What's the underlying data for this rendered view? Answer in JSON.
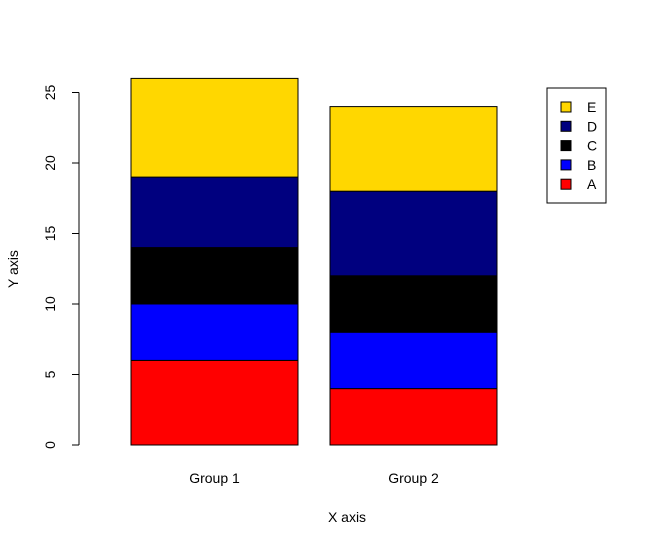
{
  "chart_data": {
    "type": "bar",
    "stacked": true,
    "categories": [
      "Group 1",
      "Group 2"
    ],
    "series": [
      {
        "name": "A",
        "color": "#ff0000",
        "values": [
          6,
          4
        ]
      },
      {
        "name": "B",
        "color": "#0000ff",
        "values": [
          4,
          4
        ]
      },
      {
        "name": "C",
        "color": "#000000",
        "values": [
          4,
          4
        ]
      },
      {
        "name": "D",
        "color": "#00007f",
        "values": [
          5,
          6
        ]
      },
      {
        "name": "E",
        "color": "#ffd700",
        "values": [
          7,
          6
        ]
      }
    ],
    "xlabel": "X axis",
    "ylabel": "Y axis",
    "ylim": [
      0,
      25
    ],
    "yticks": [
      "0",
      "5",
      "10",
      "15",
      "20",
      "25"
    ],
    "grid": false,
    "legend": "top-right"
  }
}
